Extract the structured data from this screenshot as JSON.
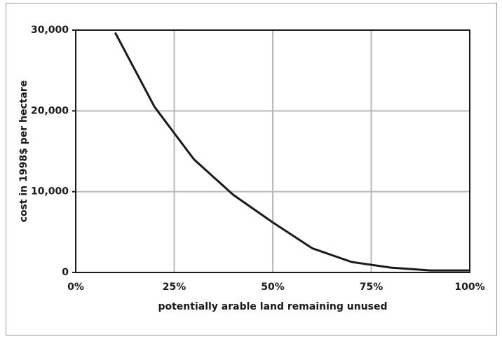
{
  "chart_data": {
    "type": "line",
    "x_label": "potentially arable land remaining unused",
    "y_label": "cost in 1998$ per hectare",
    "x": [
      10,
      20,
      30,
      40,
      50,
      60,
      70,
      80,
      90,
      100
    ],
    "series": [
      {
        "color": "#1a1a1a",
        "values": [
          29700,
          20500,
          14000,
          9600,
          6200,
          3000,
          1300,
          600,
          250,
          250
        ]
      }
    ],
    "xlim": [
      0,
      100
    ],
    "xticks": [
      {
        "value": 0,
        "label": "0%"
      },
      {
        "value": 25,
        "label": "25%"
      },
      {
        "value": 50,
        "label": "50%"
      },
      {
        "value": 75,
        "label": "75%"
      },
      {
        "value": 100,
        "label": "100%"
      }
    ],
    "ylim": [
      0,
      30000
    ],
    "yticks": [
      0,
      {
        "value": 10000,
        "label": "10,000"
      },
      {
        "value": 20000,
        "label": "20,000"
      },
      {
        "value": 30000,
        "label": "30,000"
      }
    ],
    "grid": true
  }
}
